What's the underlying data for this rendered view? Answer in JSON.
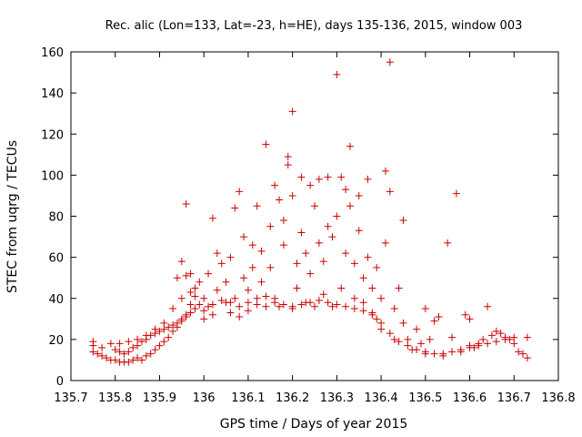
{
  "chart_data": {
    "type": "scatter",
    "title": "Rec. alic (Lon=133, Lat=-23, h=HE), days 135-136, 2015, window 003",
    "xlabel": "GPS time / Days of year 2015",
    "ylabel": "STEC from uqrg / TECUs",
    "xlim": [
      135.7,
      136.8
    ],
    "ylim": [
      0,
      160
    ],
    "xticks": [
      "135.7",
      "135.8",
      "135.9",
      "136",
      "136.1",
      "136.2",
      "136.3",
      "136.4",
      "136.5",
      "136.6",
      "136.7",
      "136.8"
    ],
    "yticks": [
      "0",
      "20",
      "40",
      "60",
      "80",
      "100",
      "120",
      "140",
      "160"
    ],
    "grid": false,
    "legend": "none",
    "marker": "plus",
    "color": "#cc0000",
    "points": [
      [
        135.75,
        19
      ],
      [
        135.75,
        17
      ],
      [
        135.75,
        14
      ],
      [
        135.76,
        13
      ],
      [
        135.77,
        12
      ],
      [
        135.78,
        11
      ],
      [
        135.79,
        10
      ],
      [
        135.8,
        10
      ],
      [
        135.81,
        9
      ],
      [
        135.82,
        9
      ],
      [
        135.83,
        9
      ],
      [
        135.84,
        10
      ],
      [
        135.85,
        11
      ],
      [
        135.86,
        10
      ],
      [
        135.87,
        12
      ],
      [
        135.88,
        13
      ],
      [
        135.89,
        15
      ],
      [
        135.9,
        17
      ],
      [
        135.91,
        19
      ],
      [
        135.92,
        21
      ],
      [
        135.93,
        24
      ],
      [
        135.94,
        26
      ],
      [
        135.95,
        29
      ],
      [
        135.96,
        32
      ],
      [
        135.97,
        37
      ],
      [
        135.98,
        41
      ],
      [
        135.99,
        48
      ],
      [
        135.8,
        15
      ],
      [
        135.81,
        14
      ],
      [
        135.82,
        13
      ],
      [
        135.83,
        14
      ],
      [
        135.84,
        16
      ],
      [
        135.85,
        17
      ],
      [
        135.86,
        19
      ],
      [
        135.87,
        20
      ],
      [
        135.88,
        22
      ],
      [
        135.89,
        23
      ],
      [
        135.9,
        24
      ],
      [
        135.91,
        25
      ],
      [
        135.92,
        26
      ],
      [
        135.93,
        27
      ],
      [
        135.94,
        28
      ],
      [
        135.95,
        30
      ],
      [
        135.96,
        31
      ],
      [
        135.97,
        33
      ],
      [
        135.98,
        35
      ],
      [
        135.99,
        37
      ],
      [
        135.77,
        16
      ],
      [
        135.79,
        18
      ],
      [
        135.81,
        18
      ],
      [
        135.83,
        19
      ],
      [
        135.85,
        20
      ],
      [
        135.87,
        22
      ],
      [
        135.89,
        25
      ],
      [
        135.91,
        28
      ],
      [
        135.93,
        35
      ],
      [
        135.95,
        40
      ],
      [
        135.97,
        43
      ],
      [
        135.96,
        86
      ],
      [
        135.95,
        58
      ],
      [
        135.94,
        50
      ],
      [
        135.96,
        51
      ],
      [
        135.97,
        52
      ],
      [
        135.98,
        45
      ],
      [
        136.0,
        30
      ],
      [
        136.0,
        40
      ],
      [
        136.01,
        36
      ],
      [
        136.01,
        52
      ],
      [
        136.02,
        79
      ],
      [
        136.02,
        32
      ],
      [
        136.03,
        44
      ],
      [
        136.03,
        62
      ],
      [
        136.04,
        57
      ],
      [
        136.05,
        38
      ],
      [
        136.05,
        48
      ],
      [
        136.06,
        33
      ],
      [
        136.06,
        60
      ],
      [
        136.07,
        84
      ],
      [
        136.07,
        40
      ],
      [
        136.08,
        31
      ],
      [
        136.08,
        92
      ],
      [
        136.09,
        50
      ],
      [
        136.09,
        70
      ],
      [
        136.1,
        34
      ],
      [
        136.1,
        44
      ],
      [
        136.11,
        55
      ],
      [
        136.11,
        66
      ],
      [
        136.12,
        37
      ],
      [
        136.12,
        85
      ],
      [
        136.13,
        63
      ],
      [
        136.13,
        48
      ],
      [
        136.14,
        115
      ],
      [
        136.14,
        36
      ],
      [
        136.15,
        75
      ],
      [
        136.15,
        55
      ],
      [
        136.16,
        95
      ],
      [
        136.16,
        40
      ],
      [
        136.17,
        88
      ],
      [
        136.17,
        36
      ],
      [
        136.18,
        66
      ],
      [
        136.18,
        78
      ],
      [
        136.19,
        105
      ],
      [
        136.19,
        109
      ],
      [
        136.2,
        131
      ],
      [
        136.2,
        35
      ],
      [
        136.2,
        90
      ],
      [
        136.21,
        57
      ],
      [
        136.21,
        45
      ],
      [
        136.22,
        99
      ],
      [
        136.22,
        72
      ],
      [
        136.23,
        38
      ],
      [
        136.23,
        62
      ],
      [
        136.24,
        95
      ],
      [
        136.24,
        52
      ],
      [
        136.25,
        85
      ],
      [
        136.25,
        36
      ],
      [
        136.26,
        98
      ],
      [
        136.26,
        67
      ],
      [
        136.27,
        58
      ],
      [
        136.27,
        42
      ],
      [
        136.28,
        75
      ],
      [
        136.28,
        99
      ],
      [
        136.29,
        70
      ],
      [
        136.29,
        36
      ],
      [
        136.3,
        149
      ],
      [
        136.3,
        80
      ],
      [
        136.31,
        99
      ],
      [
        136.31,
        45
      ],
      [
        136.32,
        93
      ],
      [
        136.32,
        62
      ],
      [
        136.33,
        85
      ],
      [
        136.33,
        114
      ],
      [
        136.34,
        57
      ],
      [
        136.34,
        40
      ],
      [
        136.35,
        73
      ],
      [
        136.35,
        90
      ],
      [
        136.36,
        50
      ],
      [
        136.36,
        38
      ],
      [
        136.37,
        98
      ],
      [
        136.37,
        60
      ],
      [
        136.38,
        45
      ],
      [
        136.38,
        33
      ],
      [
        136.39,
        55
      ],
      [
        136.39,
        30
      ],
      [
        136.4,
        40
      ],
      [
        136.4,
        25
      ],
      [
        136.41,
        67
      ],
      [
        136.41,
        102
      ],
      [
        136.42,
        92
      ],
      [
        136.42,
        155
      ],
      [
        136.43,
        35
      ],
      [
        136.43,
        20
      ],
      [
        136.44,
        45
      ],
      [
        136.45,
        78
      ],
      [
        136.45,
        28
      ],
      [
        136.46,
        20
      ],
      [
        136.47,
        15
      ],
      [
        136.48,
        25
      ],
      [
        136.49,
        18
      ],
      [
        136.5,
        35
      ],
      [
        136.5,
        13
      ],
      [
        136.51,
        20
      ],
      [
        136.52,
        29
      ],
      [
        136.53,
        31
      ],
      [
        136.54,
        12
      ],
      [
        136.55,
        67
      ],
      [
        136.56,
        21
      ],
      [
        136.57,
        91
      ],
      [
        136.58,
        14
      ],
      [
        136.59,
        32
      ],
      [
        136.6,
        30
      ],
      [
        136.6,
        17
      ],
      [
        136.61,
        16
      ],
      [
        136.62,
        18
      ],
      [
        136.63,
        20
      ],
      [
        136.64,
        36
      ],
      [
        136.65,
        22
      ],
      [
        136.66,
        24
      ],
      [
        136.67,
        23
      ],
      [
        136.68,
        21
      ],
      [
        136.69,
        20
      ],
      [
        136.7,
        18
      ],
      [
        136.71,
        14
      ],
      [
        136.72,
        13
      ],
      [
        136.73,
        21
      ],
      [
        136.73,
        11
      ],
      [
        136.0,
        34
      ],
      [
        136.02,
        37
      ],
      [
        136.04,
        39
      ],
      [
        136.06,
        38
      ],
      [
        136.08,
        36
      ],
      [
        136.1,
        38
      ],
      [
        136.12,
        40
      ],
      [
        136.14,
        41
      ],
      [
        136.16,
        38
      ],
      [
        136.18,
        37
      ],
      [
        136.2,
        36
      ],
      [
        136.22,
        37
      ],
      [
        136.24,
        38
      ],
      [
        136.26,
        39
      ],
      [
        136.28,
        38
      ],
      [
        136.3,
        37
      ],
      [
        136.32,
        36
      ],
      [
        136.34,
        35
      ],
      [
        136.36,
        34
      ],
      [
        136.38,
        32
      ],
      [
        136.4,
        28
      ],
      [
        136.42,
        23
      ],
      [
        136.44,
        19
      ],
      [
        136.46,
        17
      ],
      [
        136.48,
        15
      ],
      [
        136.5,
        14
      ],
      [
        136.52,
        13
      ],
      [
        136.54,
        13
      ],
      [
        136.56,
        14
      ],
      [
        136.58,
        15
      ],
      [
        136.6,
        16
      ],
      [
        136.62,
        17
      ],
      [
        136.64,
        18
      ],
      [
        136.66,
        19
      ],
      [
        136.68,
        20
      ],
      [
        136.7,
        21
      ]
    ]
  }
}
